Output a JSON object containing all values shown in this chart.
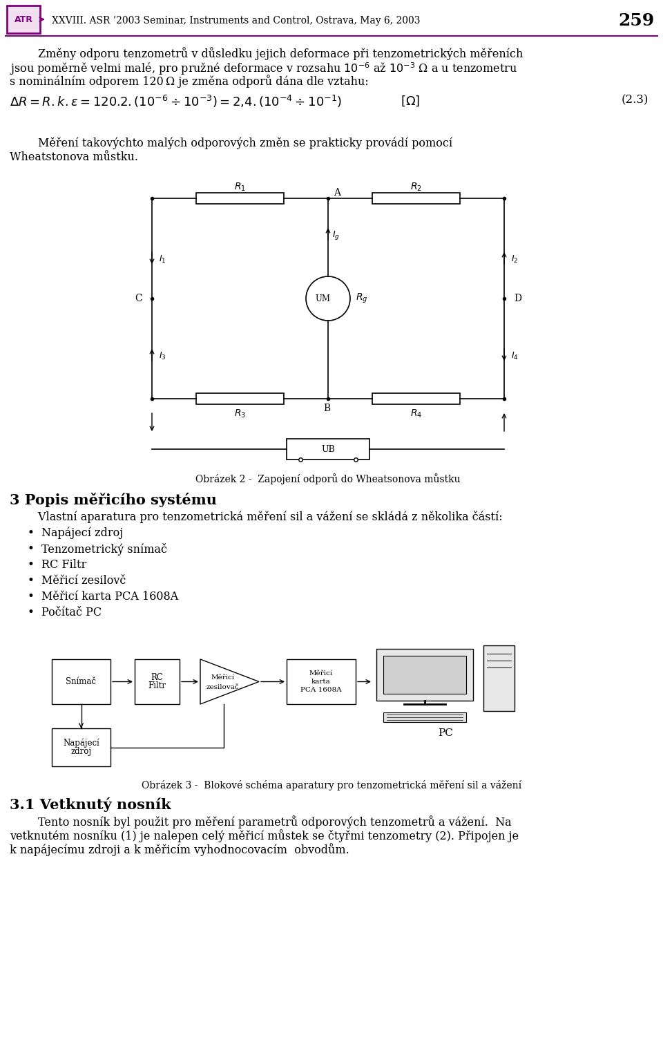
{
  "bg_color": "#ffffff",
  "header_color": "#800080",
  "header_text": "XXVIII. ASR ’2003 Seminar, Instruments and Control, Ostrava, May 6, 2003",
  "page_num": "259",
  "body_color": "#000000",
  "font_size_body": 11.5,
  "font_size_header": 10,
  "font_size_section": 15,
  "p1_lines": [
    "        Změny odporu tenzometrů v důsledku jejich deformace při tenzometrických měřeních",
    "jsou poměrně velmi malé, pro pružné deformace v rozsahu $10^{-6}$ až $10^{-3}$ Ω a u tenzometru",
    "s nominálním odporem 120 Ω je změna odporů dána dle vztahu:"
  ],
  "equation": "$\\Delta R = R.k.\\varepsilon = 120.2.\\left(10^{-6} \\div 10^{-3}\\right) = 2{,}4.\\left(10^{-4} \\div 10^{-1}\\right)$",
  "eq_unit": "$[\\Omega]$",
  "eq_num": "(2.3)",
  "p2_lines": [
    "        Měření takovýchto malých odporových změn se prakticky provádí pomocí",
    "Wheatstonova můstku."
  ],
  "fig2_caption": "Obrázek 2 -  Zapojení odporů do Wheatsonova můstku",
  "section3_title": "3 Popis měřicího systému",
  "section3_intro": "        Vlastní aparatura pro tenzometrická měření sil a vážení se skládá z několika částí:",
  "bullets": [
    "Napájecí zdroj",
    "Tenzometrický snímač",
    "RC Filtr",
    "Měřicí zesilovč",
    "Měřicí karta PCA 1608A",
    "Počítač PC"
  ],
  "fig3_caption": "Obrázek 3 -  Blokové schéma aparatury pro tenzometrická měření sil a vážení",
  "section31_title": "3.1 Vetknutý nosník",
  "p3_lines": [
    "        Tento nosník byl použit pro měření parametrů odporových tenzometrů a vážení.  Na",
    "vetknutém nosníku (1) je nalepen celý měřicí můstek se čtyřmi tenzometry (2). Připojen je",
    "k napájecímu zdroji a k měřicím vyhodnocovacím  obvodům."
  ]
}
